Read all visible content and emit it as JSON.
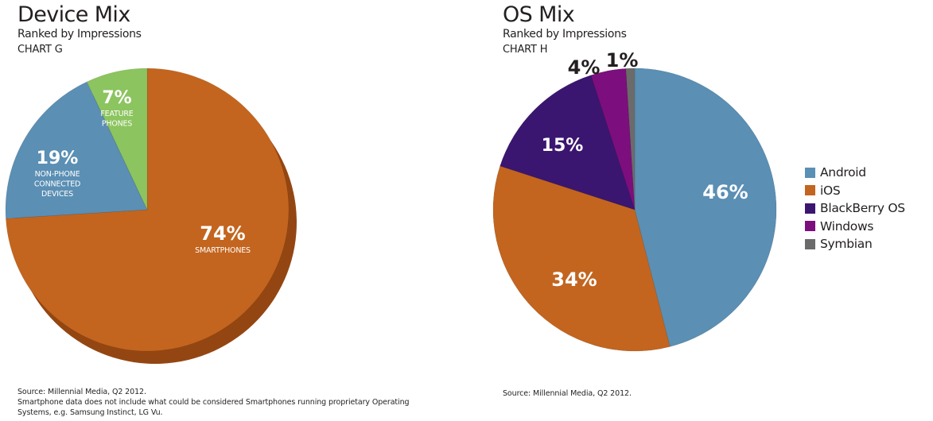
{
  "chart_data": [
    {
      "type": "pie",
      "title": "Device Mix",
      "subtitle": "Ranked by Impressions",
      "chart_code": "CHART G",
      "slices": [
        {
          "value": 74,
          "label": "74%",
          "caption": [
            "SMARTPHONES"
          ],
          "color": "#c3651f",
          "side": "#944612"
        },
        {
          "value": 19,
          "label": "19%",
          "caption": [
            "NON-PHONE",
            "CONNECTED",
            "DEVICES"
          ],
          "color": "#5b8fb4",
          "side": "#3f6e92"
        },
        {
          "value": 7,
          "label": "7%",
          "caption": [
            "FEATURE",
            "PHONES"
          ],
          "color": "#8cc45f",
          "side": "#6b9a43"
        }
      ],
      "source": [
        "Source: Millennial Media, Q2 2012.",
        "Smartphone data does not include what could be considered Smartphones running proprietary Operating",
        "Systems, e.g. Samsung Instinct, LG Vu."
      ]
    },
    {
      "type": "pie",
      "title": "OS Mix",
      "subtitle": "Ranked by Impressions",
      "chart_code": "CHART H",
      "legend_position": "right",
      "slices": [
        {
          "name": "Android",
          "value": 46,
          "label": "46%",
          "color": "#5b8fb4",
          "side": "#3f6e92"
        },
        {
          "name": "iOS",
          "value": 34,
          "label": "34%",
          "color": "#c3651f",
          "side": "#944612"
        },
        {
          "name": "BlackBerry OS",
          "value": 15,
          "label": "15%",
          "color": "#3a1670",
          "side": "#26094f"
        },
        {
          "name": "Windows",
          "value": 4,
          "label": "4%",
          "color": "#7d0e7d",
          "side": "#570857"
        },
        {
          "name": "Symbian",
          "value": 1,
          "label": "1%",
          "color": "#6b6b6b",
          "side": "#4a4a4a"
        }
      ],
      "source": [
        "Source: Millennial Media, Q2 2012."
      ]
    }
  ]
}
